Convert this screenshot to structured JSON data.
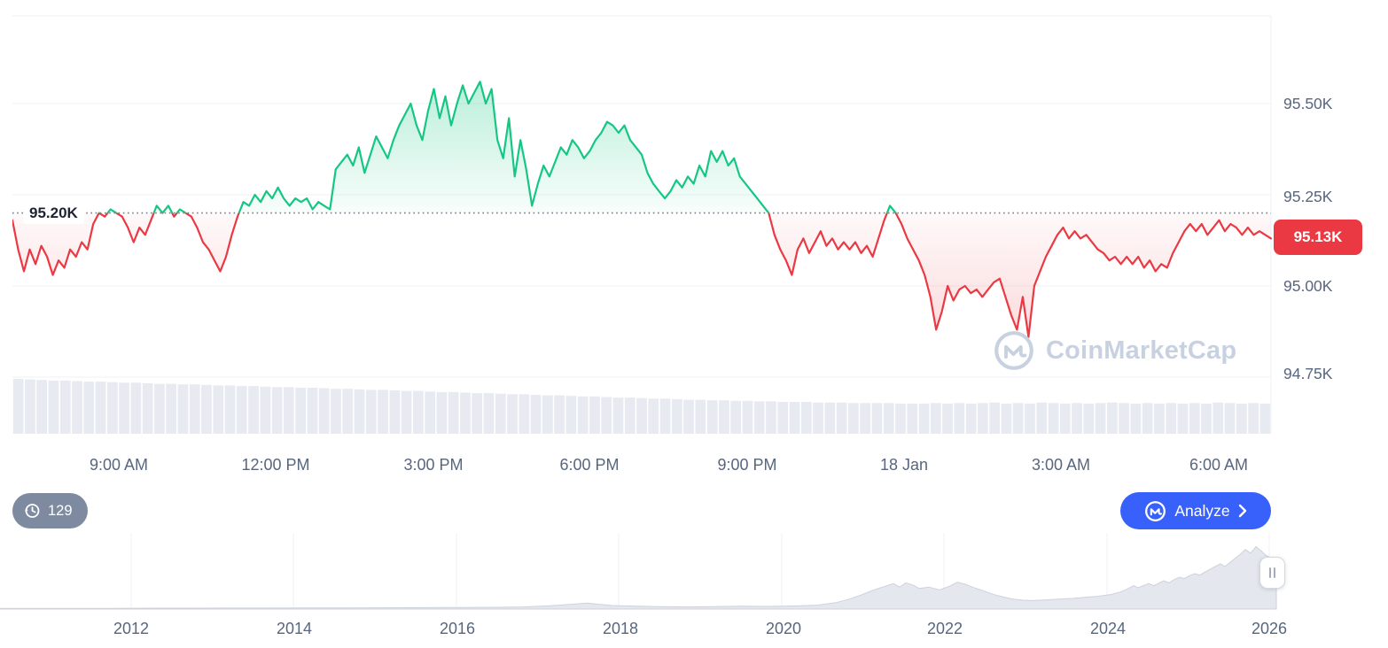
{
  "watermark": {
    "text": "CoinMarketCap"
  },
  "controls": {
    "history_count": "129",
    "analyze_label": "Analyze",
    "icons": [
      "history-icon",
      "cmc-logo-icon",
      "chevron-right-icon",
      "pause-handle-icon"
    ]
  },
  "chart_data": [
    {
      "type": "line",
      "name": "intraday-price-chart",
      "unit": "K",
      "baseline": {
        "label": "95.20K",
        "value": 95.2
      },
      "current_price": {
        "label": "95.13K",
        "value": 95.13
      },
      "y_axis": {
        "ticks": [
          "95.50K",
          "95.25K",
          "95.00K",
          "94.75K"
        ],
        "values": [
          95.5,
          95.25,
          95.0,
          94.75
        ],
        "ylim": [
          94.7,
          95.62
        ]
      },
      "x_axis": {
        "ticks": [
          "9:00 AM",
          "12:00 PM",
          "3:00 PM",
          "6:00 PM",
          "9:00 PM",
          "18 Jan",
          "3:00 AM",
          "6:00 AM"
        ]
      },
      "colors": {
        "up": "#16c784",
        "down": "#ea3943",
        "baseline_dots": "#767d8a",
        "volume": "#e7eaf0"
      },
      "series": [
        95.18,
        95.1,
        95.04,
        95.1,
        95.06,
        95.11,
        95.08,
        95.03,
        95.07,
        95.05,
        95.1,
        95.08,
        95.12,
        95.1,
        95.17,
        95.2,
        95.19,
        95.21,
        95.2,
        95.19,
        95.16,
        95.12,
        95.16,
        95.14,
        95.18,
        95.22,
        95.2,
        95.22,
        95.19,
        95.21,
        95.2,
        95.19,
        95.16,
        95.12,
        95.1,
        95.07,
        95.04,
        95.08,
        95.14,
        95.19,
        95.23,
        95.22,
        95.25,
        95.23,
        95.26,
        95.24,
        95.27,
        95.24,
        95.22,
        95.24,
        95.23,
        95.24,
        95.21,
        95.23,
        95.22,
        95.21,
        95.32,
        95.34,
        95.36,
        95.33,
        95.38,
        95.31,
        95.36,
        95.41,
        95.38,
        95.35,
        95.4,
        95.44,
        95.47,
        95.5,
        95.44,
        95.4,
        95.48,
        95.54,
        95.46,
        95.52,
        95.44,
        95.5,
        95.55,
        95.5,
        95.53,
        95.56,
        95.5,
        95.54,
        95.4,
        95.35,
        95.46,
        95.3,
        95.4,
        95.32,
        95.22,
        95.28,
        95.33,
        95.3,
        95.34,
        95.38,
        95.36,
        95.4,
        95.38,
        95.35,
        95.37,
        95.4,
        95.42,
        95.45,
        95.44,
        95.42,
        95.44,
        95.4,
        95.38,
        95.36,
        95.31,
        95.28,
        95.26,
        95.24,
        95.26,
        95.29,
        95.27,
        95.3,
        95.28,
        95.33,
        95.3,
        95.37,
        95.34,
        95.37,
        95.33,
        95.35,
        95.3,
        95.28,
        95.26,
        95.24,
        95.22,
        95.2,
        95.14,
        95.1,
        95.07,
        95.03,
        95.1,
        95.13,
        95.09,
        95.12,
        95.15,
        95.11,
        95.13,
        95.1,
        95.12,
        95.1,
        95.12,
        95.09,
        95.11,
        95.08,
        95.13,
        95.18,
        95.22,
        95.2,
        95.17,
        95.13,
        95.1,
        95.07,
        95.03,
        94.97,
        94.88,
        94.93,
        95.0,
        94.96,
        94.99,
        95.0,
        94.98,
        94.99,
        94.97,
        94.99,
        95.01,
        95.02,
        94.97,
        94.92,
        94.88,
        94.97,
        94.86,
        95.0,
        95.04,
        95.08,
        95.11,
        95.14,
        95.16,
        95.13,
        95.15,
        95.13,
        95.14,
        95.12,
        95.1,
        95.09,
        95.07,
        95.08,
        95.06,
        95.08,
        95.06,
        95.08,
        95.05,
        95.07,
        95.04,
        95.06,
        95.05,
        95.09,
        95.12,
        95.15,
        95.17,
        95.15,
        95.17,
        95.14,
        95.16,
        95.18,
        95.15,
        95.17,
        95.16,
        95.14,
        95.16,
        95.14,
        95.15,
        95.14,
        95.13
      ],
      "volume": [
        1.0,
        0.99,
        0.98,
        0.97,
        0.97,
        0.96,
        0.95,
        0.95,
        0.94,
        0.93,
        0.93,
        0.92,
        0.91,
        0.91,
        0.9,
        0.9,
        0.89,
        0.88,
        0.88,
        0.87,
        0.87,
        0.86,
        0.85,
        0.85,
        0.84,
        0.84,
        0.83,
        0.82,
        0.82,
        0.81,
        0.8,
        0.8,
        0.79,
        0.78,
        0.78,
        0.77,
        0.76,
        0.76,
        0.75,
        0.74,
        0.74,
        0.73,
        0.72,
        0.72,
        0.71,
        0.7,
        0.7,
        0.69,
        0.68,
        0.68,
        0.67,
        0.66,
        0.66,
        0.65,
        0.64,
        0.64,
        0.63,
        0.62,
        0.62,
        0.61,
        0.61,
        0.6,
        0.6,
        0.59,
        0.59,
        0.58,
        0.58,
        0.58,
        0.57,
        0.57,
        0.57,
        0.56,
        0.56,
        0.56,
        0.56,
        0.55,
        0.55,
        0.55,
        0.56,
        0.55,
        0.56,
        0.55,
        0.56,
        0.57,
        0.55,
        0.56,
        0.55,
        0.57,
        0.56,
        0.55,
        0.56,
        0.55,
        0.56,
        0.57,
        0.56,
        0.55,
        0.56,
        0.55,
        0.56,
        0.55,
        0.56,
        0.55,
        0.57,
        0.56,
        0.55,
        0.56,
        0.55
      ]
    },
    {
      "type": "area",
      "name": "history-range-navigator",
      "x_ticks": [
        "2012",
        "2014",
        "2016",
        "2018",
        "2020",
        "2022",
        "2024",
        "2026"
      ],
      "series": [
        [
          0.0,
          0.01
        ],
        [
          0.03,
          0.01
        ],
        [
          0.06,
          0.01
        ],
        [
          0.09,
          0.01
        ],
        [
          0.12,
          0.012
        ],
        [
          0.15,
          0.012
        ],
        [
          0.18,
          0.014
        ],
        [
          0.21,
          0.014
        ],
        [
          0.24,
          0.016
        ],
        [
          0.27,
          0.016
        ],
        [
          0.3,
          0.018
        ],
        [
          0.33,
          0.02
        ],
        [
          0.36,
          0.022
        ],
        [
          0.39,
          0.025
        ],
        [
          0.41,
          0.03
        ],
        [
          0.43,
          0.045
        ],
        [
          0.45,
          0.07
        ],
        [
          0.46,
          0.085
        ],
        [
          0.47,
          0.065
        ],
        [
          0.48,
          0.05
        ],
        [
          0.5,
          0.04
        ],
        [
          0.52,
          0.032
        ],
        [
          0.54,
          0.03
        ],
        [
          0.56,
          0.035
        ],
        [
          0.58,
          0.04
        ],
        [
          0.6,
          0.038
        ],
        [
          0.62,
          0.042
        ],
        [
          0.64,
          0.055
        ],
        [
          0.655,
          0.09
        ],
        [
          0.665,
          0.14
        ],
        [
          0.675,
          0.2
        ],
        [
          0.685,
          0.27
        ],
        [
          0.695,
          0.33
        ],
        [
          0.7,
          0.36
        ],
        [
          0.705,
          0.31
        ],
        [
          0.71,
          0.37
        ],
        [
          0.715,
          0.34
        ],
        [
          0.72,
          0.29
        ],
        [
          0.728,
          0.31
        ],
        [
          0.736,
          0.27
        ],
        [
          0.744,
          0.32
        ],
        [
          0.75,
          0.38
        ],
        [
          0.756,
          0.35
        ],
        [
          0.762,
          0.31
        ],
        [
          0.77,
          0.26
        ],
        [
          0.778,
          0.21
        ],
        [
          0.786,
          0.17
        ],
        [
          0.794,
          0.14
        ],
        [
          0.802,
          0.125
        ],
        [
          0.81,
          0.12
        ],
        [
          0.82,
          0.13
        ],
        [
          0.83,
          0.14
        ],
        [
          0.84,
          0.15
        ],
        [
          0.85,
          0.165
        ],
        [
          0.86,
          0.18
        ],
        [
          0.87,
          0.205
        ],
        [
          0.878,
          0.24
        ],
        [
          0.884,
          0.29
        ],
        [
          0.888,
          0.33
        ],
        [
          0.892,
          0.3
        ],
        [
          0.896,
          0.33
        ],
        [
          0.9,
          0.36
        ],
        [
          0.904,
          0.33
        ],
        [
          0.908,
          0.37
        ],
        [
          0.912,
          0.4
        ],
        [
          0.916,
          0.37
        ],
        [
          0.92,
          0.42
        ],
        [
          0.924,
          0.45
        ],
        [
          0.928,
          0.43
        ],
        [
          0.932,
          0.47
        ],
        [
          0.936,
          0.5
        ],
        [
          0.94,
          0.48
        ],
        [
          0.944,
          0.52
        ],
        [
          0.948,
          0.56
        ],
        [
          0.952,
          0.6
        ],
        [
          0.956,
          0.64
        ],
        [
          0.96,
          0.6
        ],
        [
          0.964,
          0.66
        ],
        [
          0.968,
          0.72
        ],
        [
          0.972,
          0.78
        ],
        [
          0.976,
          0.84
        ],
        [
          0.98,
          0.79
        ],
        [
          0.984,
          0.88
        ],
        [
          0.988,
          0.82
        ],
        [
          0.992,
          0.76
        ],
        [
          0.996,
          0.72
        ],
        [
          1.0,
          0.68
        ]
      ]
    }
  ]
}
